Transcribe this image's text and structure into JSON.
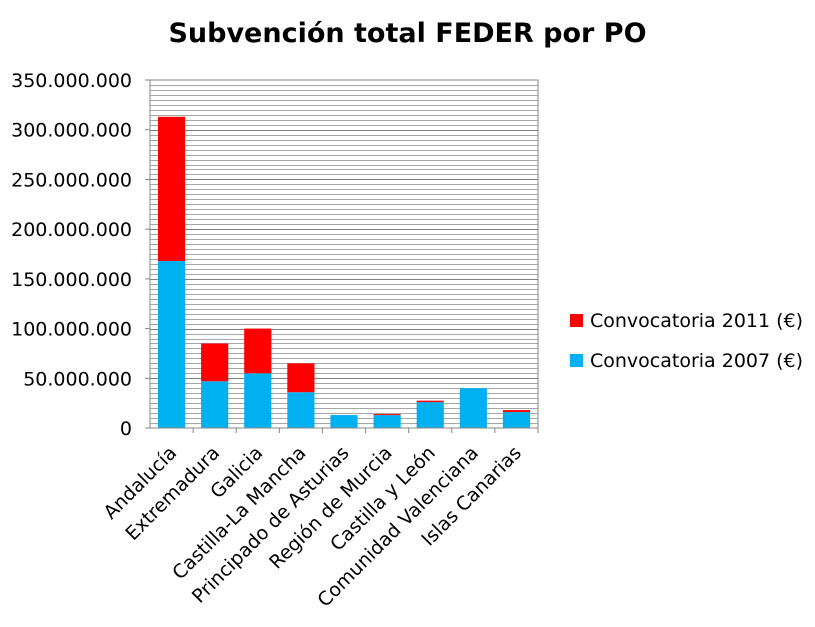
{
  "chart_data": {
    "type": "bar",
    "stacked": true,
    "title": "Subvención total FEDER por PO",
    "xlabel": "",
    "ylabel": "",
    "categories": [
      "Andalucía",
      "Extremadura",
      "Galicia",
      "Castilla-La Mancha",
      "Principado de Asturias",
      "Región de Murcia",
      "Castilla y León",
      "Comunidad Valenciana",
      "Islas Canarias"
    ],
    "series": [
      {
        "name": "Convocatoria 2007 (€)",
        "color": "#00b0f0",
        "values": [
          168000000,
          47000000,
          55000000,
          36000000,
          13000000,
          13000000,
          26000000,
          40000000,
          16000000
        ]
      },
      {
        "name": "Convocatoria 2011 (€)",
        "color": "#ff0000",
        "values": [
          145000000,
          38000000,
          45000000,
          29000000,
          0,
          1000000,
          1500000,
          0,
          2000000
        ]
      }
    ],
    "ylim": [
      0,
      350000000
    ],
    "yticks": [
      0,
      50000000,
      100000000,
      150000000,
      200000000,
      250000000,
      300000000,
      350000000
    ],
    "ytick_labels": [
      "0",
      "50.000.000",
      "100.000.000",
      "150.000.000",
      "200.000.000",
      "250.000.000",
      "300.000.000",
      "350.000.000"
    ],
    "grid": true,
    "legend_position": "right",
    "legend_order": [
      "Convocatoria 2011 (€)",
      "Convocatoria 2007 (€)"
    ]
  }
}
